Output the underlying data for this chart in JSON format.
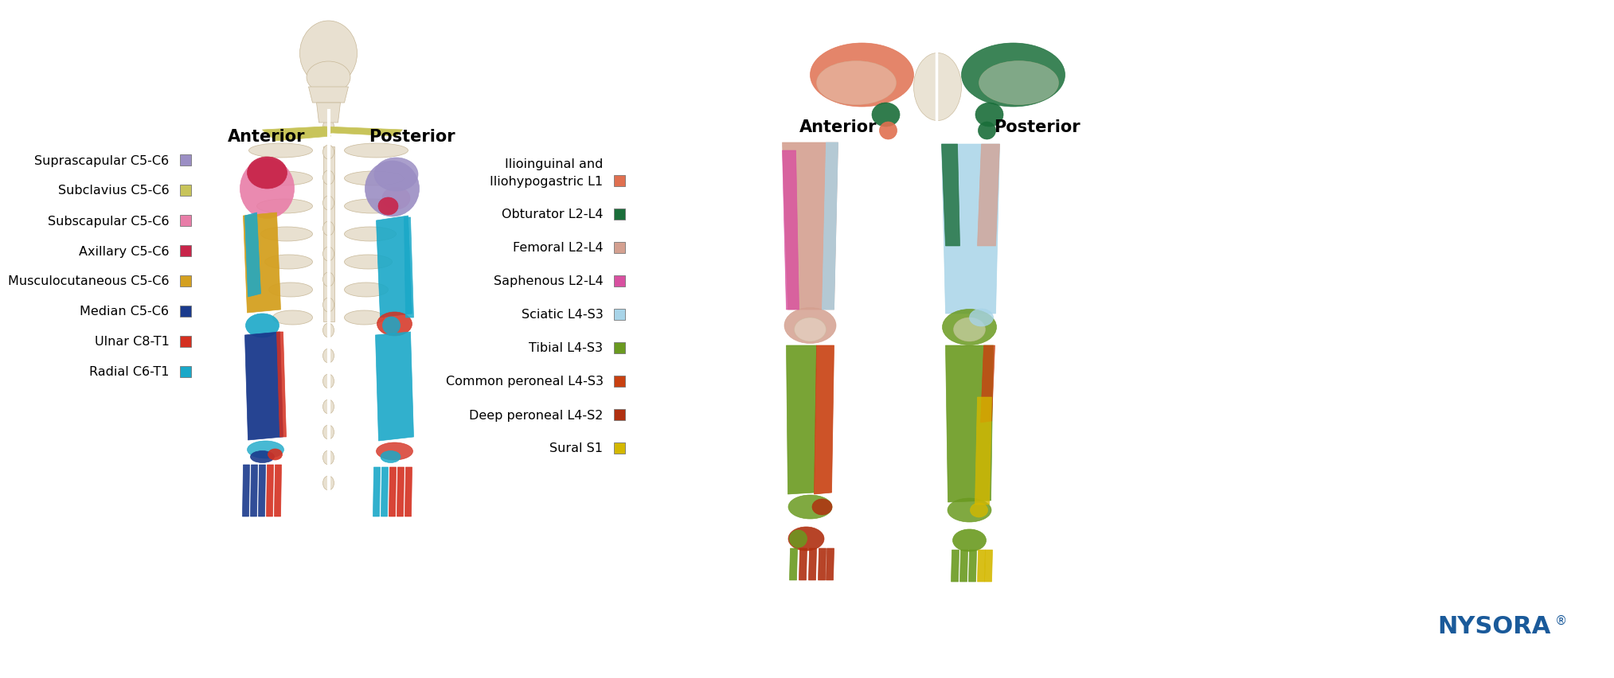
{
  "background_color": "#ffffff",
  "fig_width": 19.2,
  "fig_height": 8.33,
  "left_anterior_label": "Anterior",
  "left_posterior_label": "Posterior",
  "right_anterior_label": "Anterior",
  "right_posterior_label": "Posterior",
  "header_fontsize": 15,
  "header_fontweight": "bold",
  "left_legend_entries": [
    {
      "label": "Suprascapular C5-C6",
      "color": "#9B8EC4"
    },
    {
      "label": "Subclavius C5-C6",
      "color": "#C8C45A"
    },
    {
      "label": "Subscapular C5-C6",
      "color": "#E87DA8"
    },
    {
      "label": "Axillary C5-C6",
      "color": "#C8254A"
    },
    {
      "label": "Musculocutaneous C5-C6",
      "color": "#D4A020"
    },
    {
      "label": "Median C5-C6",
      "color": "#1A3A8C"
    },
    {
      "label": "Ulnar C8-T1",
      "color": "#D43020"
    },
    {
      "label": "Radial C6-T1",
      "color": "#1AA8C8"
    }
  ],
  "right_legend_line1": "Ilioinguinal and",
  "right_legend_entries": [
    {
      "label": "Iliohypogastric L1",
      "color": "#E07050"
    },
    {
      "label": "Obturator L2-L4",
      "color": "#1A6E3A"
    },
    {
      "label": "Femoral L2-L4",
      "color": "#D4A090"
    },
    {
      "label": "Saphenous L2-L4",
      "color": "#D850A0"
    },
    {
      "label": "Sciatic L4-S3",
      "color": "#A8D4E8"
    },
    {
      "label": "Tibial L4-S3",
      "color": "#6A9A20"
    },
    {
      "label": "Common peroneal L4-S3",
      "color": "#C84010"
    },
    {
      "label": "Deep peroneal L4-S2",
      "color": "#B03010"
    },
    {
      "label": "Sural S1",
      "color": "#D4B800"
    }
  ],
  "nysora_text": "NYSORA",
  "nysora_sup": "®",
  "nysora_color": "#1A5A9A",
  "nysora_fontsize": 22,
  "legend_fontsize": 11.5,
  "swatch_size": 14,
  "bone_color": "#E8E0D0",
  "bone_edge": "#C8B898",
  "skin_color": "#F5EDE0",
  "axillary_color": "#C8254A",
  "suprascap_color": "#9B8EC4",
  "subclavius_color": "#C8C45A",
  "subscap_color": "#E87DA8",
  "musculo_color": "#D4A020",
  "median_color": "#1A3A8C",
  "ulnar_color": "#D43020",
  "radial_color": "#1AA8C8",
  "ilioing_color": "#E07050",
  "obturator_color": "#1A6E3A",
  "femoral_color": "#D4A090",
  "saphenous_color": "#D850A0",
  "sciatic_color": "#A8D4E8",
  "tibial_color": "#6A9A20",
  "common_peroneal_color": "#C84010",
  "deep_peroneal_color": "#B03010",
  "sural_color": "#D4B800"
}
